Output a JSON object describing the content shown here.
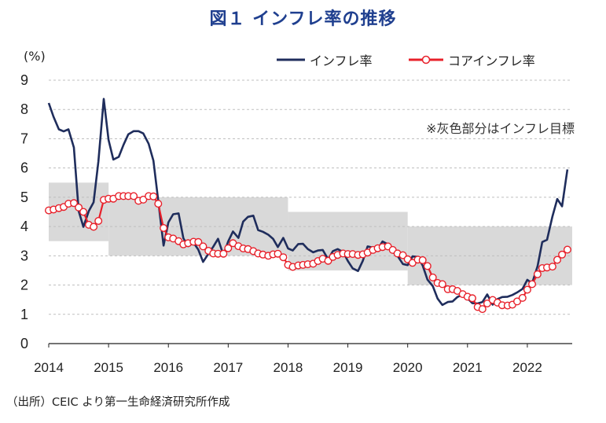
{
  "header": {
    "title": "図１ インフレ率の推移"
  },
  "notes": {
    "target_band": "※灰色部分はインフレ目標",
    "source": "（出所）CEIC より第一生命経済研究所作成"
  },
  "colors": {
    "headline": "#1f2d5c",
    "core_line": "#e8202a",
    "core_marker_fill": "#ffffff",
    "band": "#d9d9d9",
    "title": "#1f3f8f"
  },
  "chart_data": {
    "type": "line",
    "ylabel": "(%)",
    "ylim": [
      0,
      9
    ],
    "yticks": [
      "0",
      "1",
      "2",
      "3",
      "4",
      "5",
      "6",
      "7",
      "8",
      "9"
    ],
    "xlim": [
      2014,
      2022.75
    ],
    "xticks": [
      "2014",
      "2015",
      "2016",
      "2017",
      "2018",
      "2019",
      "2020",
      "2021",
      "2022"
    ],
    "grid": "horizontal dashed",
    "legend": "top-right",
    "target_band": [
      {
        "from": 2014.0,
        "to": 2015.0,
        "low": 3.5,
        "high": 5.5
      },
      {
        "from": 2015.0,
        "to": 2018.0,
        "low": 3.0,
        "high": 5.0
      },
      {
        "from": 2018.0,
        "to": 2020.0,
        "low": 2.5,
        "high": 4.5
      },
      {
        "from": 2020.0,
        "to": 2022.75,
        "low": 2.0,
        "high": 4.0
      }
    ],
    "series": [
      {
        "name": "インフレ率",
        "style": "line",
        "points": [
          [
            2014.0,
            8.22
          ],
          [
            2014.08,
            7.75
          ],
          [
            2014.17,
            7.32
          ],
          [
            2014.25,
            7.25
          ],
          [
            2014.33,
            7.32
          ],
          [
            2014.42,
            6.7
          ],
          [
            2014.5,
            4.53
          ],
          [
            2014.58,
            3.99
          ],
          [
            2014.67,
            4.53
          ],
          [
            2014.75,
            4.83
          ],
          [
            2014.83,
            6.23
          ],
          [
            2014.92,
            8.36
          ],
          [
            2015.0,
            6.96
          ],
          [
            2015.08,
            6.29
          ],
          [
            2015.17,
            6.38
          ],
          [
            2015.25,
            6.79
          ],
          [
            2015.33,
            7.15
          ],
          [
            2015.42,
            7.26
          ],
          [
            2015.5,
            7.26
          ],
          [
            2015.58,
            7.18
          ],
          [
            2015.67,
            6.83
          ],
          [
            2015.75,
            6.25
          ],
          [
            2015.83,
            4.89
          ],
          [
            2015.92,
            3.35
          ],
          [
            2016.0,
            4.14
          ],
          [
            2016.08,
            4.42
          ],
          [
            2016.17,
            4.45
          ],
          [
            2016.25,
            3.6
          ],
          [
            2016.33,
            3.33
          ],
          [
            2016.42,
            3.45
          ],
          [
            2016.5,
            3.21
          ],
          [
            2016.58,
            2.79
          ],
          [
            2016.67,
            3.07
          ],
          [
            2016.75,
            3.31
          ],
          [
            2016.83,
            3.58
          ],
          [
            2016.92,
            3.02
          ],
          [
            2017.0,
            3.49
          ],
          [
            2017.08,
            3.83
          ],
          [
            2017.17,
            3.61
          ],
          [
            2017.25,
            4.17
          ],
          [
            2017.33,
            4.33
          ],
          [
            2017.42,
            4.37
          ],
          [
            2017.5,
            3.88
          ],
          [
            2017.58,
            3.82
          ],
          [
            2017.67,
            3.72
          ],
          [
            2017.75,
            3.58
          ],
          [
            2017.83,
            3.3
          ],
          [
            2017.92,
            3.61
          ],
          [
            2018.0,
            3.25
          ],
          [
            2018.08,
            3.18
          ],
          [
            2018.17,
            3.4
          ],
          [
            2018.25,
            3.41
          ],
          [
            2018.33,
            3.23
          ],
          [
            2018.42,
            3.12
          ],
          [
            2018.5,
            3.18
          ],
          [
            2018.58,
            3.2
          ],
          [
            2018.67,
            2.88
          ],
          [
            2018.75,
            3.16
          ],
          [
            2018.83,
            3.23
          ],
          [
            2018.92,
            3.13
          ],
          [
            2019.0,
            2.82
          ],
          [
            2019.08,
            2.57
          ],
          [
            2019.17,
            2.48
          ],
          [
            2019.25,
            2.83
          ],
          [
            2019.33,
            3.32
          ],
          [
            2019.42,
            3.28
          ],
          [
            2019.5,
            3.22
          ],
          [
            2019.58,
            3.49
          ],
          [
            2019.67,
            3.39
          ],
          [
            2019.75,
            3.13
          ],
          [
            2019.83,
            3.0
          ],
          [
            2019.92,
            2.72
          ],
          [
            2020.0,
            2.68
          ],
          [
            2020.08,
            2.98
          ],
          [
            2020.17,
            2.96
          ],
          [
            2020.25,
            2.67
          ],
          [
            2020.33,
            2.19
          ],
          [
            2020.42,
            1.96
          ],
          [
            2020.5,
            1.54
          ],
          [
            2020.58,
            1.32
          ],
          [
            2020.67,
            1.42
          ],
          [
            2020.75,
            1.44
          ],
          [
            2020.83,
            1.59
          ],
          [
            2020.92,
            1.68
          ],
          [
            2021.0,
            1.55
          ],
          [
            2021.08,
            1.38
          ],
          [
            2021.17,
            1.37
          ],
          [
            2021.25,
            1.42
          ],
          [
            2021.33,
            1.68
          ],
          [
            2021.42,
            1.33
          ],
          [
            2021.5,
            1.52
          ],
          [
            2021.58,
            1.59
          ],
          [
            2021.67,
            1.6
          ],
          [
            2021.75,
            1.66
          ],
          [
            2021.83,
            1.75
          ],
          [
            2021.92,
            1.87
          ],
          [
            2022.0,
            2.18
          ],
          [
            2022.08,
            2.06
          ],
          [
            2022.17,
            2.64
          ],
          [
            2022.25,
            3.47
          ],
          [
            2022.33,
            3.55
          ],
          [
            2022.42,
            4.35
          ],
          [
            2022.5,
            4.94
          ],
          [
            2022.58,
            4.69
          ],
          [
            2022.67,
            5.95
          ]
        ]
      },
      {
        "name": "コアインフレ率",
        "style": "line-with-markers",
        "points": [
          [
            2014.0,
            4.55
          ],
          [
            2014.08,
            4.58
          ],
          [
            2014.17,
            4.63
          ],
          [
            2014.25,
            4.67
          ],
          [
            2014.33,
            4.78
          ],
          [
            2014.42,
            4.8
          ],
          [
            2014.5,
            4.65
          ],
          [
            2014.58,
            4.5
          ],
          [
            2014.67,
            4.06
          ],
          [
            2014.75,
            3.99
          ],
          [
            2014.83,
            4.19
          ],
          [
            2014.92,
            4.91
          ],
          [
            2015.0,
            4.95
          ],
          [
            2015.08,
            4.95
          ],
          [
            2015.17,
            5.04
          ],
          [
            2015.25,
            5.04
          ],
          [
            2015.33,
            5.04
          ],
          [
            2015.42,
            5.04
          ],
          [
            2015.5,
            4.88
          ],
          [
            2015.58,
            4.92
          ],
          [
            2015.67,
            5.04
          ],
          [
            2015.75,
            5.03
          ],
          [
            2015.83,
            4.78
          ],
          [
            2015.92,
            3.95
          ],
          [
            2016.0,
            3.63
          ],
          [
            2016.08,
            3.59
          ],
          [
            2016.17,
            3.5
          ],
          [
            2016.25,
            3.39
          ],
          [
            2016.33,
            3.43
          ],
          [
            2016.42,
            3.48
          ],
          [
            2016.5,
            3.47
          ],
          [
            2016.58,
            3.32
          ],
          [
            2016.67,
            3.17
          ],
          [
            2016.75,
            3.08
          ],
          [
            2016.83,
            3.07
          ],
          [
            2016.92,
            3.07
          ],
          [
            2017.0,
            3.26
          ],
          [
            2017.08,
            3.43
          ],
          [
            2017.17,
            3.33
          ],
          [
            2017.25,
            3.25
          ],
          [
            2017.33,
            3.23
          ],
          [
            2017.42,
            3.16
          ],
          [
            2017.5,
            3.08
          ],
          [
            2017.58,
            3.04
          ],
          [
            2017.67,
            3.0
          ],
          [
            2017.75,
            3.05
          ],
          [
            2017.83,
            3.07
          ],
          [
            2017.92,
            2.95
          ],
          [
            2018.0,
            2.69
          ],
          [
            2018.08,
            2.62
          ],
          [
            2018.17,
            2.67
          ],
          [
            2018.25,
            2.69
          ],
          [
            2018.33,
            2.71
          ],
          [
            2018.42,
            2.73
          ],
          [
            2018.5,
            2.82
          ],
          [
            2018.58,
            2.9
          ],
          [
            2018.67,
            2.83
          ],
          [
            2018.75,
            2.96
          ],
          [
            2018.83,
            3.03
          ],
          [
            2018.92,
            3.08
          ],
          [
            2019.0,
            3.06
          ],
          [
            2019.08,
            3.06
          ],
          [
            2019.17,
            3.03
          ],
          [
            2019.25,
            3.05
          ],
          [
            2019.33,
            3.11
          ],
          [
            2019.42,
            3.2
          ],
          [
            2019.5,
            3.26
          ],
          [
            2019.58,
            3.3
          ],
          [
            2019.67,
            3.32
          ],
          [
            2019.75,
            3.2
          ],
          [
            2019.83,
            3.08
          ],
          [
            2019.92,
            3.02
          ],
          [
            2020.0,
            2.88
          ],
          [
            2020.08,
            2.76
          ],
          [
            2020.17,
            2.87
          ],
          [
            2020.25,
            2.85
          ],
          [
            2020.33,
            2.65
          ],
          [
            2020.42,
            2.26
          ],
          [
            2020.5,
            2.07
          ],
          [
            2020.58,
            2.03
          ],
          [
            2020.67,
            1.86
          ],
          [
            2020.75,
            1.86
          ],
          [
            2020.83,
            1.8
          ],
          [
            2020.92,
            1.69
          ],
          [
            2021.0,
            1.6
          ],
          [
            2021.08,
            1.55
          ],
          [
            2021.17,
            1.25
          ],
          [
            2021.25,
            1.18
          ],
          [
            2021.33,
            1.37
          ],
          [
            2021.42,
            1.49
          ],
          [
            2021.5,
            1.4
          ],
          [
            2021.58,
            1.31
          ],
          [
            2021.67,
            1.3
          ],
          [
            2021.75,
            1.33
          ],
          [
            2021.83,
            1.44
          ],
          [
            2021.92,
            1.56
          ],
          [
            2022.0,
            1.84
          ],
          [
            2022.08,
            2.03
          ],
          [
            2022.17,
            2.37
          ],
          [
            2022.25,
            2.58
          ],
          [
            2022.33,
            2.6
          ],
          [
            2022.42,
            2.63
          ],
          [
            2022.5,
            2.86
          ],
          [
            2022.58,
            3.04
          ],
          [
            2022.67,
            3.21
          ]
        ]
      }
    ]
  }
}
